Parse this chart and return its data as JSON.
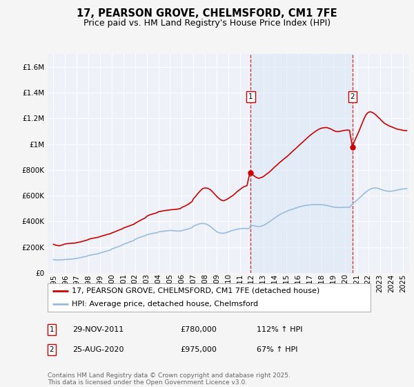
{
  "title": "17, PEARSON GROVE, CHELMSFORD, CM1 7FE",
  "subtitle": "Price paid vs. HM Land Registry's House Price Index (HPI)",
  "legend_line1": "17, PEARSON GROVE, CHELMSFORD, CM1 7FE (detached house)",
  "legend_line2": "HPI: Average price, detached house, Chelmsford",
  "annotation1_label": "1",
  "annotation1_date": "29-NOV-2011",
  "annotation1_price": "£780,000",
  "annotation1_hpi": "112% ↑ HPI",
  "annotation1_year": 2011.92,
  "annotation1_value": 780000,
  "annotation2_label": "2",
  "annotation2_date": "25-AUG-2020",
  "annotation2_price": "£975,000",
  "annotation2_hpi": "67% ↑ HPI",
  "annotation2_year": 2020.65,
  "annotation2_value": 975000,
  "footer": "Contains HM Land Registry data © Crown copyright and database right 2025.\nThis data is licensed under the Open Government Licence v3.0.",
  "ylim": [
    0,
    1700000
  ],
  "xlim_start": 1994.5,
  "xlim_end": 2025.5,
  "background_color": "#f5f5f5",
  "plot_bg_color": "#eef2f8",
  "grid_color": "#ffffff",
  "red_line_color": "#cc0000",
  "blue_line_color": "#99bbdd",
  "shade_color": "#dce8f5",
  "title_fontsize": 10.5,
  "subtitle_fontsize": 9,
  "tick_fontsize": 7.5,
  "legend_fontsize": 8,
  "footer_fontsize": 6.5,
  "red_property_data": [
    [
      1995.0,
      222000
    ],
    [
      1995.2,
      215000
    ],
    [
      1995.5,
      210000
    ],
    [
      1995.8,
      218000
    ],
    [
      1996.0,
      225000
    ],
    [
      1996.3,
      228000
    ],
    [
      1996.6,
      230000
    ],
    [
      1996.9,
      232000
    ],
    [
      1997.0,
      235000
    ],
    [
      1997.3,
      240000
    ],
    [
      1997.6,
      248000
    ],
    [
      1997.9,
      255000
    ],
    [
      1998.0,
      260000
    ],
    [
      1998.3,
      268000
    ],
    [
      1998.6,
      272000
    ],
    [
      1998.9,
      278000
    ],
    [
      1999.0,
      282000
    ],
    [
      1999.3,
      290000
    ],
    [
      1999.6,
      298000
    ],
    [
      1999.9,
      305000
    ],
    [
      2000.0,
      310000
    ],
    [
      2000.3,
      320000
    ],
    [
      2000.6,
      332000
    ],
    [
      2000.9,
      342000
    ],
    [
      2001.0,
      348000
    ],
    [
      2001.3,
      358000
    ],
    [
      2001.6,
      368000
    ],
    [
      2001.9,
      378000
    ],
    [
      2002.0,
      385000
    ],
    [
      2002.3,
      400000
    ],
    [
      2002.6,
      415000
    ],
    [
      2002.9,
      428000
    ],
    [
      2003.0,
      440000
    ],
    [
      2003.3,
      452000
    ],
    [
      2003.6,
      460000
    ],
    [
      2003.9,
      468000
    ],
    [
      2004.0,
      475000
    ],
    [
      2004.3,
      480000
    ],
    [
      2004.6,
      485000
    ],
    [
      2004.9,
      488000
    ],
    [
      2005.0,
      490000
    ],
    [
      2005.3,
      492000
    ],
    [
      2005.6,
      495000
    ],
    [
      2005.9,
      500000
    ],
    [
      2006.0,
      508000
    ],
    [
      2006.3,
      520000
    ],
    [
      2006.6,
      535000
    ],
    [
      2006.9,
      555000
    ],
    [
      2007.0,
      575000
    ],
    [
      2007.2,
      595000
    ],
    [
      2007.4,
      618000
    ],
    [
      2007.6,
      638000
    ],
    [
      2007.8,
      655000
    ],
    [
      2008.0,
      660000
    ],
    [
      2008.2,
      658000
    ],
    [
      2008.4,
      650000
    ],
    [
      2008.6,
      635000
    ],
    [
      2008.8,
      615000
    ],
    [
      2009.0,
      595000
    ],
    [
      2009.2,
      578000
    ],
    [
      2009.4,
      565000
    ],
    [
      2009.6,
      560000
    ],
    [
      2009.8,
      568000
    ],
    [
      2010.0,
      578000
    ],
    [
      2010.2,
      590000
    ],
    [
      2010.4,
      602000
    ],
    [
      2010.6,
      618000
    ],
    [
      2010.8,
      635000
    ],
    [
      2011.0,
      648000
    ],
    [
      2011.2,
      662000
    ],
    [
      2011.4,
      672000
    ],
    [
      2011.6,
      678000
    ],
    [
      2011.8,
      760000
    ],
    [
      2011.92,
      780000
    ],
    [
      2012.0,
      770000
    ],
    [
      2012.2,
      755000
    ],
    [
      2012.4,
      742000
    ],
    [
      2012.6,
      735000
    ],
    [
      2012.8,
      740000
    ],
    [
      2013.0,
      748000
    ],
    [
      2013.2,
      762000
    ],
    [
      2013.4,
      775000
    ],
    [
      2013.6,
      790000
    ],
    [
      2013.8,
      808000
    ],
    [
      2014.0,
      825000
    ],
    [
      2014.2,
      840000
    ],
    [
      2014.4,
      858000
    ],
    [
      2014.6,
      872000
    ],
    [
      2014.8,
      888000
    ],
    [
      2015.0,
      902000
    ],
    [
      2015.2,
      918000
    ],
    [
      2015.4,
      935000
    ],
    [
      2015.6,
      952000
    ],
    [
      2015.8,
      968000
    ],
    [
      2016.0,
      985000
    ],
    [
      2016.2,
      1002000
    ],
    [
      2016.4,
      1018000
    ],
    [
      2016.6,
      1035000
    ],
    [
      2016.8,
      1052000
    ],
    [
      2017.0,
      1068000
    ],
    [
      2017.2,
      1082000
    ],
    [
      2017.4,
      1095000
    ],
    [
      2017.6,
      1108000
    ],
    [
      2017.8,
      1118000
    ],
    [
      2018.0,
      1125000
    ],
    [
      2018.2,
      1128000
    ],
    [
      2018.4,
      1130000
    ],
    [
      2018.6,
      1125000
    ],
    [
      2018.8,
      1118000
    ],
    [
      2019.0,
      1108000
    ],
    [
      2019.2,
      1100000
    ],
    [
      2019.4,
      1098000
    ],
    [
      2019.6,
      1100000
    ],
    [
      2019.8,
      1105000
    ],
    [
      2020.0,
      1108000
    ],
    [
      2020.2,
      1110000
    ],
    [
      2020.4,
      1108000
    ],
    [
      2020.65,
      975000
    ],
    [
      2020.8,
      1020000
    ],
    [
      2021.0,
      1060000
    ],
    [
      2021.2,
      1100000
    ],
    [
      2021.4,
      1145000
    ],
    [
      2021.6,
      1190000
    ],
    [
      2021.8,
      1228000
    ],
    [
      2022.0,
      1248000
    ],
    [
      2022.2,
      1252000
    ],
    [
      2022.4,
      1245000
    ],
    [
      2022.6,
      1232000
    ],
    [
      2022.8,
      1215000
    ],
    [
      2023.0,
      1198000
    ],
    [
      2023.2,
      1178000
    ],
    [
      2023.4,
      1162000
    ],
    [
      2023.6,
      1152000
    ],
    [
      2023.8,
      1142000
    ],
    [
      2024.0,
      1135000
    ],
    [
      2024.2,
      1128000
    ],
    [
      2024.4,
      1120000
    ],
    [
      2024.6,
      1115000
    ],
    [
      2024.8,
      1112000
    ],
    [
      2025.0,
      1108000
    ],
    [
      2025.3,
      1105000
    ]
  ],
  "blue_hpi_data": [
    [
      1995.0,
      102000
    ],
    [
      1995.3,
      100000
    ],
    [
      1995.6,
      100000
    ],
    [
      1995.9,
      102000
    ],
    [
      1996.0,
      104000
    ],
    [
      1996.3,
      105000
    ],
    [
      1996.6,
      107000
    ],
    [
      1996.9,
      110000
    ],
    [
      1997.0,
      113000
    ],
    [
      1997.3,
      118000
    ],
    [
      1997.6,
      124000
    ],
    [
      1997.9,
      130000
    ],
    [
      1998.0,
      135000
    ],
    [
      1998.3,
      140000
    ],
    [
      1998.6,
      145000
    ],
    [
      1998.9,
      150000
    ],
    [
      1999.0,
      155000
    ],
    [
      1999.3,
      162000
    ],
    [
      1999.6,
      170000
    ],
    [
      1999.9,
      178000
    ],
    [
      2000.0,
      185000
    ],
    [
      2000.3,
      195000
    ],
    [
      2000.6,
      205000
    ],
    [
      2000.9,
      215000
    ],
    [
      2001.0,
      222000
    ],
    [
      2001.3,
      232000
    ],
    [
      2001.6,
      242000
    ],
    [
      2001.9,
      252000
    ],
    [
      2002.0,
      260000
    ],
    [
      2002.3,
      272000
    ],
    [
      2002.6,
      282000
    ],
    [
      2002.9,
      290000
    ],
    [
      2003.0,
      296000
    ],
    [
      2003.3,
      302000
    ],
    [
      2003.6,
      308000
    ],
    [
      2003.9,
      312000
    ],
    [
      2004.0,
      318000
    ],
    [
      2004.3,
      322000
    ],
    [
      2004.6,
      325000
    ],
    [
      2004.9,
      328000
    ],
    [
      2005.0,
      330000
    ],
    [
      2005.3,
      328000
    ],
    [
      2005.6,
      325000
    ],
    [
      2005.9,
      325000
    ],
    [
      2006.0,
      328000
    ],
    [
      2006.3,
      335000
    ],
    [
      2006.6,
      342000
    ],
    [
      2006.9,
      352000
    ],
    [
      2007.0,
      362000
    ],
    [
      2007.2,
      370000
    ],
    [
      2007.4,
      378000
    ],
    [
      2007.6,
      382000
    ],
    [
      2007.8,
      385000
    ],
    [
      2008.0,
      382000
    ],
    [
      2008.2,
      375000
    ],
    [
      2008.4,
      365000
    ],
    [
      2008.6,
      350000
    ],
    [
      2008.8,
      335000
    ],
    [
      2009.0,
      320000
    ],
    [
      2009.2,
      312000
    ],
    [
      2009.4,
      308000
    ],
    [
      2009.6,
      308000
    ],
    [
      2009.8,
      312000
    ],
    [
      2010.0,
      318000
    ],
    [
      2010.2,
      325000
    ],
    [
      2010.4,
      330000
    ],
    [
      2010.6,
      335000
    ],
    [
      2010.8,
      340000
    ],
    [
      2011.0,
      342000
    ],
    [
      2011.2,
      345000
    ],
    [
      2011.4,
      345000
    ],
    [
      2011.6,
      344000
    ],
    [
      2011.8,
      345000
    ],
    [
      2011.92,
      368000
    ],
    [
      2012.0,
      368000
    ],
    [
      2012.2,
      366000
    ],
    [
      2012.4,
      362000
    ],
    [
      2012.6,
      360000
    ],
    [
      2012.8,
      362000
    ],
    [
      2013.0,
      368000
    ],
    [
      2013.2,
      378000
    ],
    [
      2013.4,
      390000
    ],
    [
      2013.6,
      402000
    ],
    [
      2013.8,
      415000
    ],
    [
      2014.0,
      428000
    ],
    [
      2014.2,
      440000
    ],
    [
      2014.4,
      452000
    ],
    [
      2014.6,
      462000
    ],
    [
      2014.8,
      470000
    ],
    [
      2015.0,
      478000
    ],
    [
      2015.2,
      486000
    ],
    [
      2015.4,
      492000
    ],
    [
      2015.6,
      498000
    ],
    [
      2015.8,
      504000
    ],
    [
      2016.0,
      510000
    ],
    [
      2016.2,
      516000
    ],
    [
      2016.4,
      520000
    ],
    [
      2016.6,
      524000
    ],
    [
      2016.8,
      526000
    ],
    [
      2017.0,
      528000
    ],
    [
      2017.2,
      530000
    ],
    [
      2017.4,
      530000
    ],
    [
      2017.6,
      530000
    ],
    [
      2017.8,
      530000
    ],
    [
      2018.0,
      530000
    ],
    [
      2018.2,
      528000
    ],
    [
      2018.4,
      525000
    ],
    [
      2018.6,
      520000
    ],
    [
      2018.8,
      516000
    ],
    [
      2019.0,
      512000
    ],
    [
      2019.2,
      510000
    ],
    [
      2019.4,
      508000
    ],
    [
      2019.6,
      508000
    ],
    [
      2019.8,
      510000
    ],
    [
      2020.0,
      510000
    ],
    [
      2020.2,
      510000
    ],
    [
      2020.4,
      510000
    ],
    [
      2020.65,
      535000
    ],
    [
      2020.8,
      548000
    ],
    [
      2021.0,
      562000
    ],
    [
      2021.2,
      578000
    ],
    [
      2021.4,
      595000
    ],
    [
      2021.6,
      612000
    ],
    [
      2021.8,
      628000
    ],
    [
      2022.0,
      642000
    ],
    [
      2022.2,
      652000
    ],
    [
      2022.4,
      658000
    ],
    [
      2022.6,
      660000
    ],
    [
      2022.8,
      658000
    ],
    [
      2023.0,
      652000
    ],
    [
      2023.2,
      645000
    ],
    [
      2023.4,
      640000
    ],
    [
      2023.6,
      636000
    ],
    [
      2023.8,
      634000
    ],
    [
      2024.0,
      635000
    ],
    [
      2024.2,
      638000
    ],
    [
      2024.4,
      642000
    ],
    [
      2024.6,
      646000
    ],
    [
      2024.8,
      650000
    ],
    [
      2025.0,
      652000
    ],
    [
      2025.3,
      655000
    ]
  ]
}
